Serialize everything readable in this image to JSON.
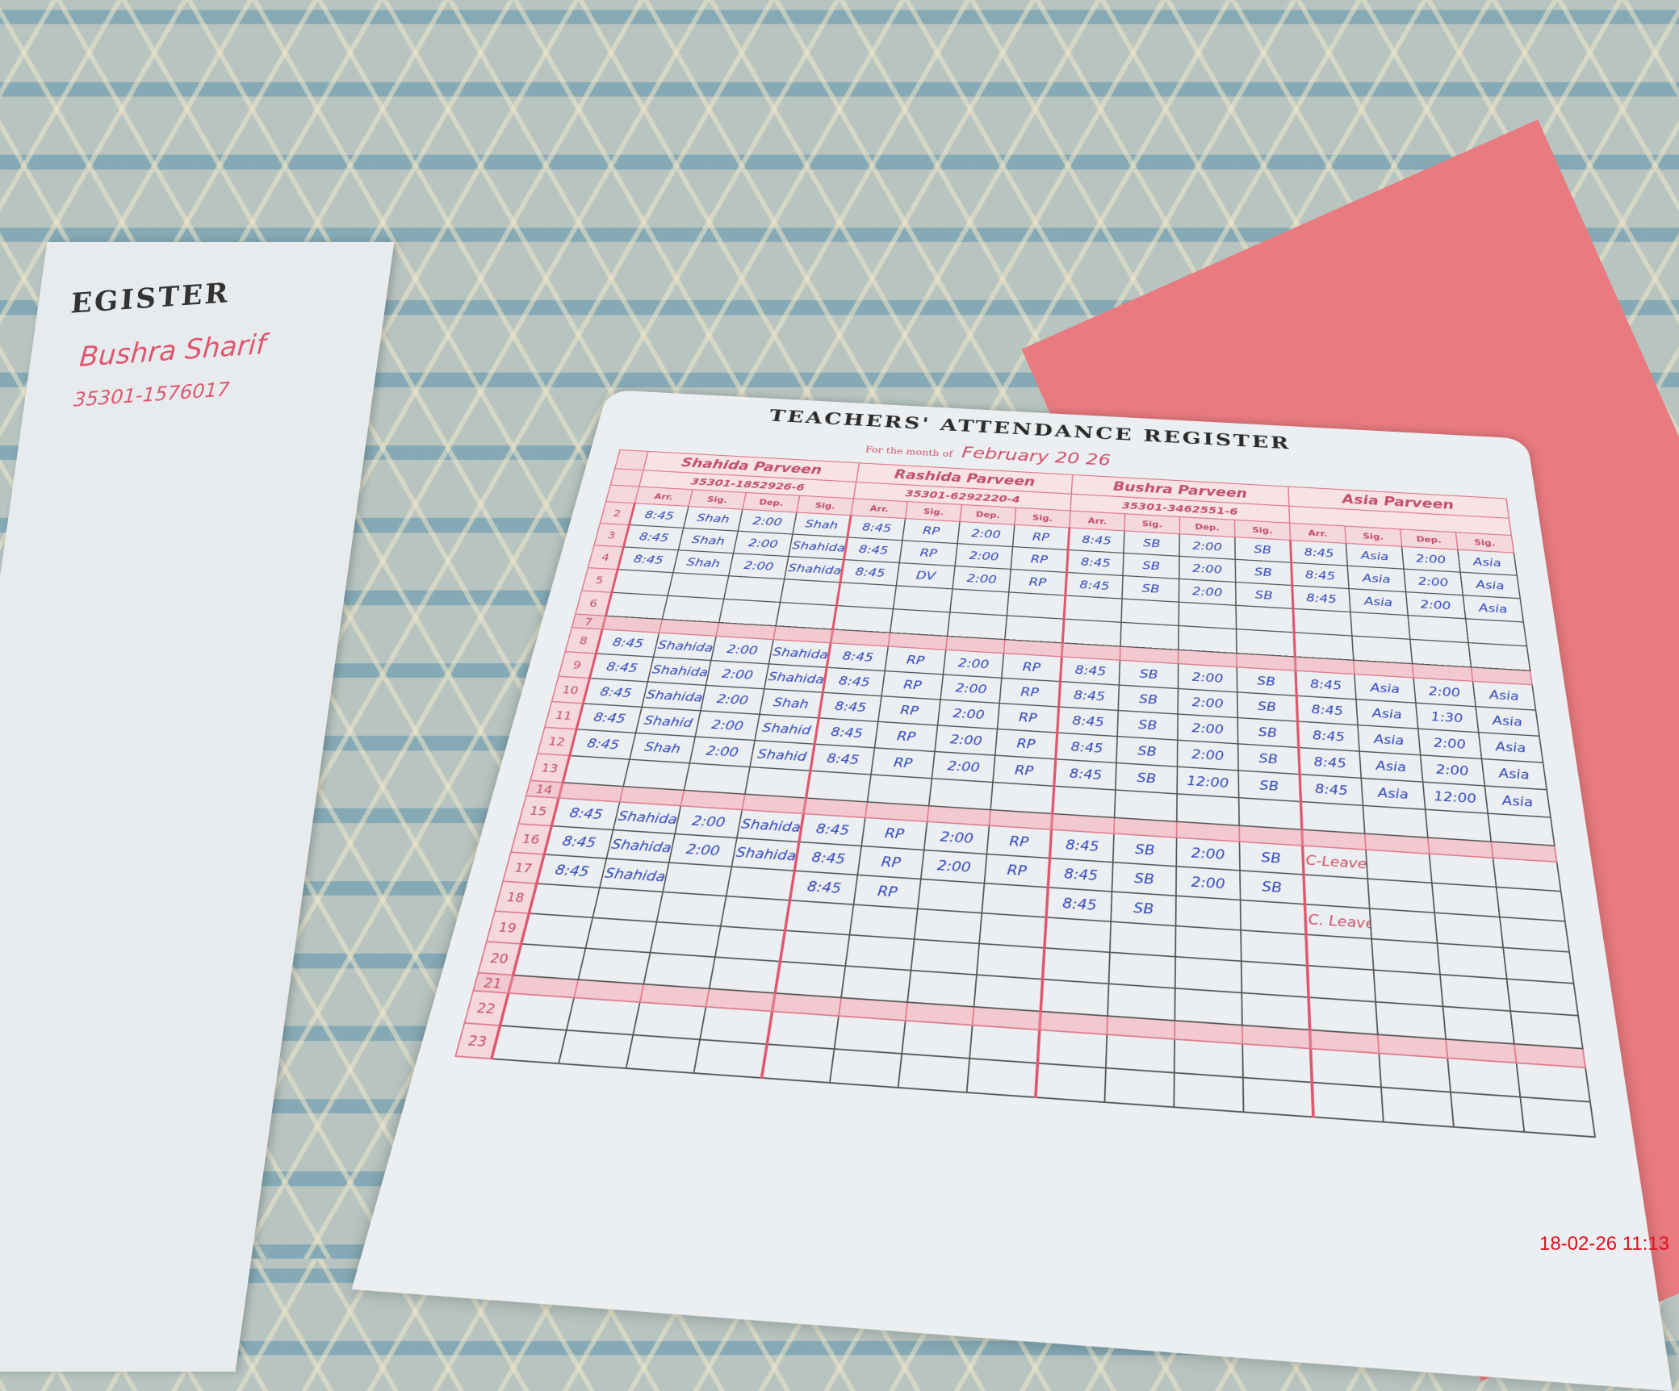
{
  "left_page": {
    "title": "EGISTER",
    "teacher_name": "Bushra Sharif",
    "teacher_cnic": "35301-1576017"
  },
  "register": {
    "title": "TEACHERS' ATTENDANCE REGISTER",
    "month_label": "For the month of",
    "month_value": "February 20 26",
    "column_labels": [
      "Arr.",
      "Sig.",
      "Dep.",
      "Sig."
    ],
    "teachers": [
      {
        "name": "Shahida Parveen",
        "cnic": "35301-1852926-6"
      },
      {
        "name": "Rashida Parveen",
        "cnic": "35301-6292220-4"
      },
      {
        "name": "Bushra Parveen",
        "cnic": "35301-3462551-6"
      },
      {
        "name": "Asia Parveen",
        "cnic": ""
      }
    ],
    "rows": [
      {
        "day": "2",
        "cells": [
          "8:45",
          "Shah",
          "2:00",
          "Shah",
          "8:45",
          "RP",
          "2:00",
          "RP",
          "8:45",
          "SB",
          "2:00",
          "SB",
          "8:45",
          "Asia",
          "2:00",
          "Asia"
        ]
      },
      {
        "day": "3",
        "cells": [
          "8:45",
          "Shah",
          "2:00",
          "Shahida",
          "8:45",
          "RP",
          "2:00",
          "RP",
          "8:45",
          "SB",
          "2:00",
          "SB",
          "8:45",
          "Asia",
          "2:00",
          "Asia"
        ]
      },
      {
        "day": "4",
        "cells": [
          "8:45",
          "Shah",
          "2:00",
          "Shahida",
          "8:45",
          "DV",
          "2:00",
          "RP",
          "8:45",
          "SB",
          "2:00",
          "SB",
          "8:45",
          "Asia",
          "2:00",
          "Asia"
        ]
      },
      {
        "day": "5",
        "cells": []
      },
      {
        "day": "6",
        "cells": []
      },
      {
        "day": "7",
        "band": true
      },
      {
        "day": "8",
        "cells": [
          "8:45",
          "Shahida",
          "2:00",
          "Shahida",
          "8:45",
          "RP",
          "2:00",
          "RP",
          "8:45",
          "SB",
          "2:00",
          "SB",
          "8:45",
          "Asia",
          "2:00",
          "Asia"
        ]
      },
      {
        "day": "9",
        "cells": [
          "8:45",
          "Shahida",
          "2:00",
          "Shahida",
          "8:45",
          "RP",
          "2:00",
          "RP",
          "8:45",
          "SB",
          "2:00",
          "SB",
          "8:45",
          "Asia",
          "1:30",
          "Asia"
        ]
      },
      {
        "day": "10",
        "cells": [
          "8:45",
          "Shahida",
          "2:00",
          "Shah",
          "8:45",
          "RP",
          "2:00",
          "RP",
          "8:45",
          "SB",
          "2:00",
          "SB",
          "8:45",
          "Asia",
          "2:00",
          "Asia"
        ]
      },
      {
        "day": "11",
        "cells": [
          "8:45",
          "Shahid",
          "2:00",
          "Shahid",
          "8:45",
          "RP",
          "2:00",
          "RP",
          "8:45",
          "SB",
          "2:00",
          "SB",
          "8:45",
          "Asia",
          "2:00",
          "Asia"
        ]
      },
      {
        "day": "12",
        "cells": [
          "8:45",
          "Shah",
          "2:00",
          "Shahid",
          "8:45",
          "RP",
          "2:00",
          "RP",
          "8:45",
          "SB",
          "12:00",
          "SB",
          "8:45",
          "Asia",
          "12:00",
          "Asia"
        ]
      },
      {
        "day": "13",
        "cells": []
      },
      {
        "day": "14",
        "band": true
      },
      {
        "day": "15",
        "cells": [
          "8:45",
          "Shahida",
          "2:00",
          "Shahida",
          "8:45",
          "RP",
          "2:00",
          "RP",
          "8:45",
          "SB",
          "2:00",
          "SB",
          "C-Leave",
          "",
          "",
          ""
        ]
      },
      {
        "day": "16",
        "cells": [
          "8:45",
          "Shahida",
          "2:00",
          "Shahida",
          "8:45",
          "RP",
          "2:00",
          "RP",
          "8:45",
          "SB",
          "2:00",
          "SB",
          "",
          "",
          "",
          ""
        ]
      },
      {
        "day": "17",
        "cells": [
          "8:45",
          "Shahida",
          "",
          "",
          "8:45",
          "RP",
          "",
          "",
          "8:45",
          "SB",
          "",
          "",
          "C. Leave",
          "",
          "",
          ""
        ]
      },
      {
        "day": "18",
        "cells": []
      },
      {
        "day": "19",
        "cells": []
      },
      {
        "day": "20",
        "cells": []
      },
      {
        "day": "21",
        "band": true
      },
      {
        "day": "22",
        "cells": []
      },
      {
        "day": "23",
        "cells": []
      }
    ]
  },
  "timestamp": "18-02-26  11:13",
  "colors": {
    "ink": "#2f46b8",
    "ruling": "#e0566e",
    "stamp": "#e0101e"
  }
}
